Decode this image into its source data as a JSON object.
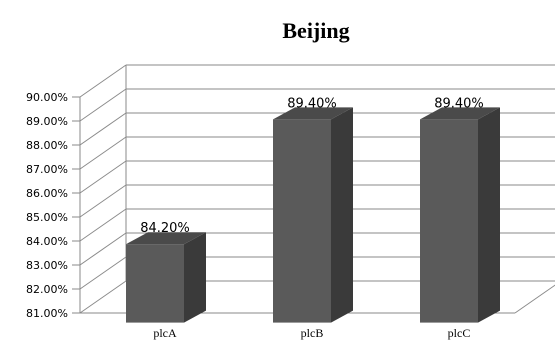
{
  "chart_data": {
    "type": "bar",
    "style": "3d-column",
    "title": "Beijing",
    "categories": [
      "plcA",
      "plcB",
      "plcC"
    ],
    "values": [
      84.2,
      89.4,
      89.4
    ],
    "data_labels": [
      "84.20%",
      "89.40%",
      "89.40%"
    ],
    "ylim": [
      81,
      90
    ],
    "yticks": [
      "81.00%",
      "82.00%",
      "83.00%",
      "84.00%",
      "85.00%",
      "86.00%",
      "87.00%",
      "88.00%",
      "89.00%",
      "90.00%"
    ],
    "grid": true,
    "legend": "none",
    "colors": {
      "bar_front": "#5a5a5a",
      "bar_side": "#3a3a3a",
      "bar_top": "#4a4a4a",
      "grid": "#8a8a8a"
    }
  }
}
